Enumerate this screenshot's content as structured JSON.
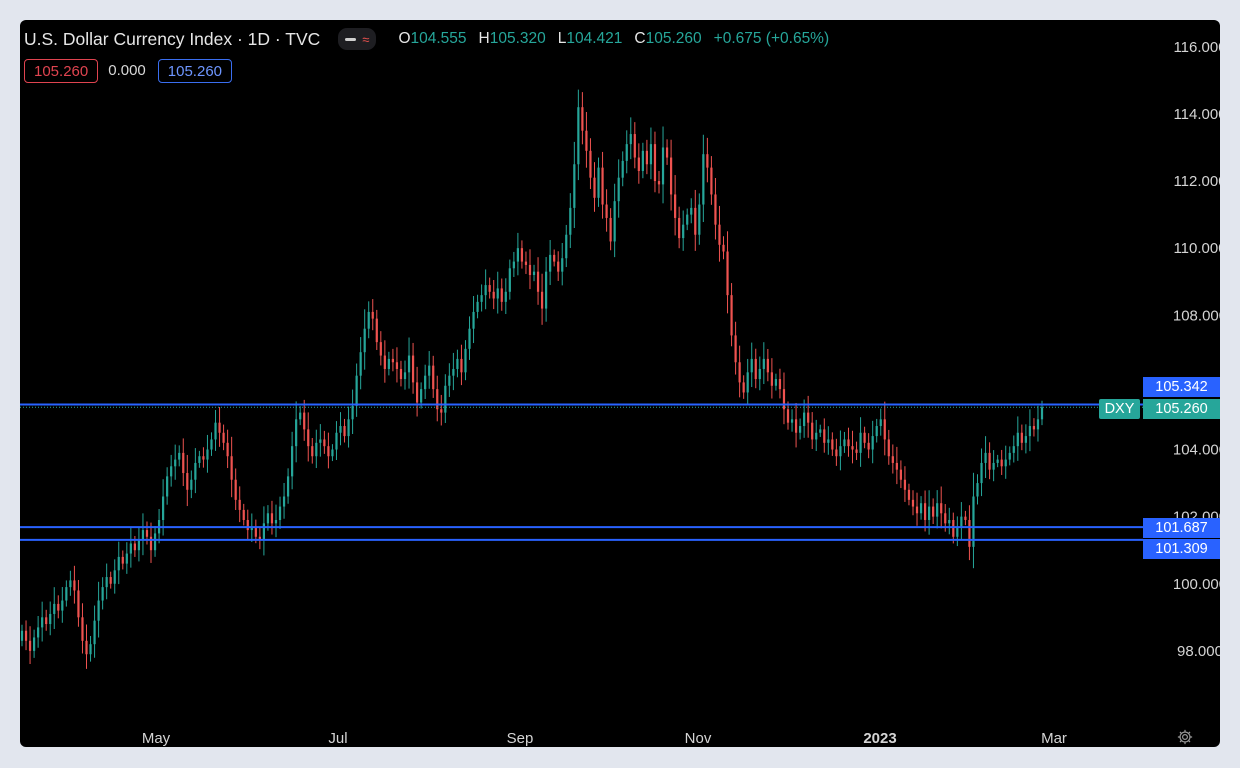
{
  "header": {
    "title": "U.S. Dollar Currency Index · 1D · TVC",
    "open_label": "O",
    "open": "104.555",
    "high_label": "H",
    "high": "105.320",
    "low_label": "L",
    "low": "104.421",
    "close_label": "C",
    "close": "105.260",
    "change": "+0.675 (+0.65%)"
  },
  "badges": {
    "sell": "105.260",
    "spread": "0.000",
    "buy": "105.260"
  },
  "price_tags": {
    "line_top": "105.342",
    "symbol": "DXY",
    "last": "105.260",
    "line_mid": "101.687",
    "line_low": "101.309"
  },
  "icons": {
    "settings": "gear-icon",
    "indicator_toggle": "wave-icon"
  },
  "colors": {
    "up": "#26a69a",
    "down": "#ef5350",
    "line": "#2962ff",
    "background": "#000000"
  },
  "chart_data": {
    "type": "candlestick",
    "title": "U.S. Dollar Currency Index · 1D · TVC",
    "symbol": "DXY",
    "y_ticks": [
      "116.000",
      "114.000",
      "112.000",
      "110.000",
      "108.000",
      "104.000",
      "102.000",
      "100.000",
      "98.000"
    ],
    "ylim": [
      96.0,
      116.0
    ],
    "x_ticks": [
      "May",
      "Jul",
      "Sep",
      "Nov",
      "2023",
      "Mar"
    ],
    "horizontal_lines": [
      105.342,
      101.687,
      101.309
    ],
    "last_price": 105.26,
    "grid": false,
    "series": [
      {
        "name": "DXY close (approx. daily)",
        "closes": [
          98.6,
          98.3,
          98.0,
          98.4,
          98.7,
          99.0,
          98.8,
          99.1,
          99.4,
          99.2,
          99.5,
          99.9,
          100.1,
          99.8,
          99.0,
          98.3,
          97.9,
          98.2,
          98.9,
          99.5,
          99.9,
          100.2,
          100.0,
          100.4,
          100.8,
          100.6,
          100.9,
          101.2,
          101.0,
          101.3,
          101.6,
          101.4,
          101.0,
          101.5,
          101.9,
          102.6,
          103.2,
          103.5,
          103.7,
          103.9,
          103.3,
          102.8,
          103.1,
          103.6,
          103.8,
          103.7,
          104.0,
          104.3,
          104.8,
          104.5,
          104.2,
          103.8,
          103.1,
          102.5,
          102.2,
          101.9,
          101.6,
          101.7,
          101.4,
          101.3,
          101.8,
          102.1,
          101.8,
          101.9,
          102.3,
          102.6,
          103.2,
          104.1,
          104.9,
          105.1,
          104.6,
          104.1,
          103.8,
          104.2,
          104.3,
          104.1,
          103.8,
          104.0,
          104.5,
          104.7,
          104.4,
          104.9,
          105.3,
          106.2,
          106.9,
          107.6,
          108.1,
          107.9,
          107.2,
          106.8,
          106.4,
          106.7,
          106.6,
          106.4,
          106.1,
          106.3,
          106.8,
          106.0,
          105.4,
          105.8,
          106.2,
          106.5,
          105.8,
          105.2,
          105.1,
          105.9,
          106.2,
          106.4,
          106.7,
          106.3,
          107.0,
          107.6,
          108.1,
          108.4,
          108.6,
          108.9,
          108.7,
          108.5,
          108.8,
          108.4,
          108.7,
          109.4,
          109.6,
          110.0,
          109.6,
          109.5,
          109.2,
          109.3,
          108.7,
          108.2,
          109.3,
          109.8,
          109.6,
          109.3,
          109.7,
          110.4,
          111.2,
          112.5,
          114.2,
          113.5,
          112.9,
          112.1,
          111.5,
          112.4,
          111.3,
          110.9,
          110.2,
          111.4,
          112.1,
          112.6,
          113.1,
          113.4,
          112.7,
          112.3,
          112.9,
          112.5,
          113.1,
          112.0,
          111.9,
          113.0,
          112.7,
          111.6,
          110.9,
          110.3,
          110.7,
          111.0,
          111.2,
          110.4,
          111.3,
          112.8,
          112.4,
          111.6,
          110.7,
          110.1,
          109.9,
          108.6,
          107.4,
          106.6,
          106.0,
          105.7,
          106.3,
          106.7,
          106.1,
          106.4,
          106.7,
          106.3,
          105.9,
          106.1,
          105.8,
          105.2,
          104.8,
          104.9,
          104.5,
          104.7,
          105.1,
          104.8,
          104.3,
          104.5,
          104.6,
          104.2,
          104.3,
          104.0,
          103.8,
          104.1,
          104.3,
          104.1,
          104.0,
          103.9,
          104.5,
          104.2,
          104.0,
          104.4,
          104.7,
          104.9,
          104.3,
          103.8,
          103.6,
          103.4,
          103.1,
          102.8,
          102.5,
          102.3,
          102.1,
          102.4,
          101.9,
          102.3,
          102.0,
          102.4,
          102.1,
          101.8,
          101.9,
          101.4,
          101.7,
          102.0,
          101.9,
          101.1,
          102.6,
          103.0,
          103.6,
          103.9,
          103.4,
          103.6,
          103.7,
          103.5,
          103.7,
          103.9,
          104.1,
          104.5,
          104.2,
          104.4,
          104.7,
          104.6,
          104.9,
          105.26
        ]
      }
    ]
  }
}
